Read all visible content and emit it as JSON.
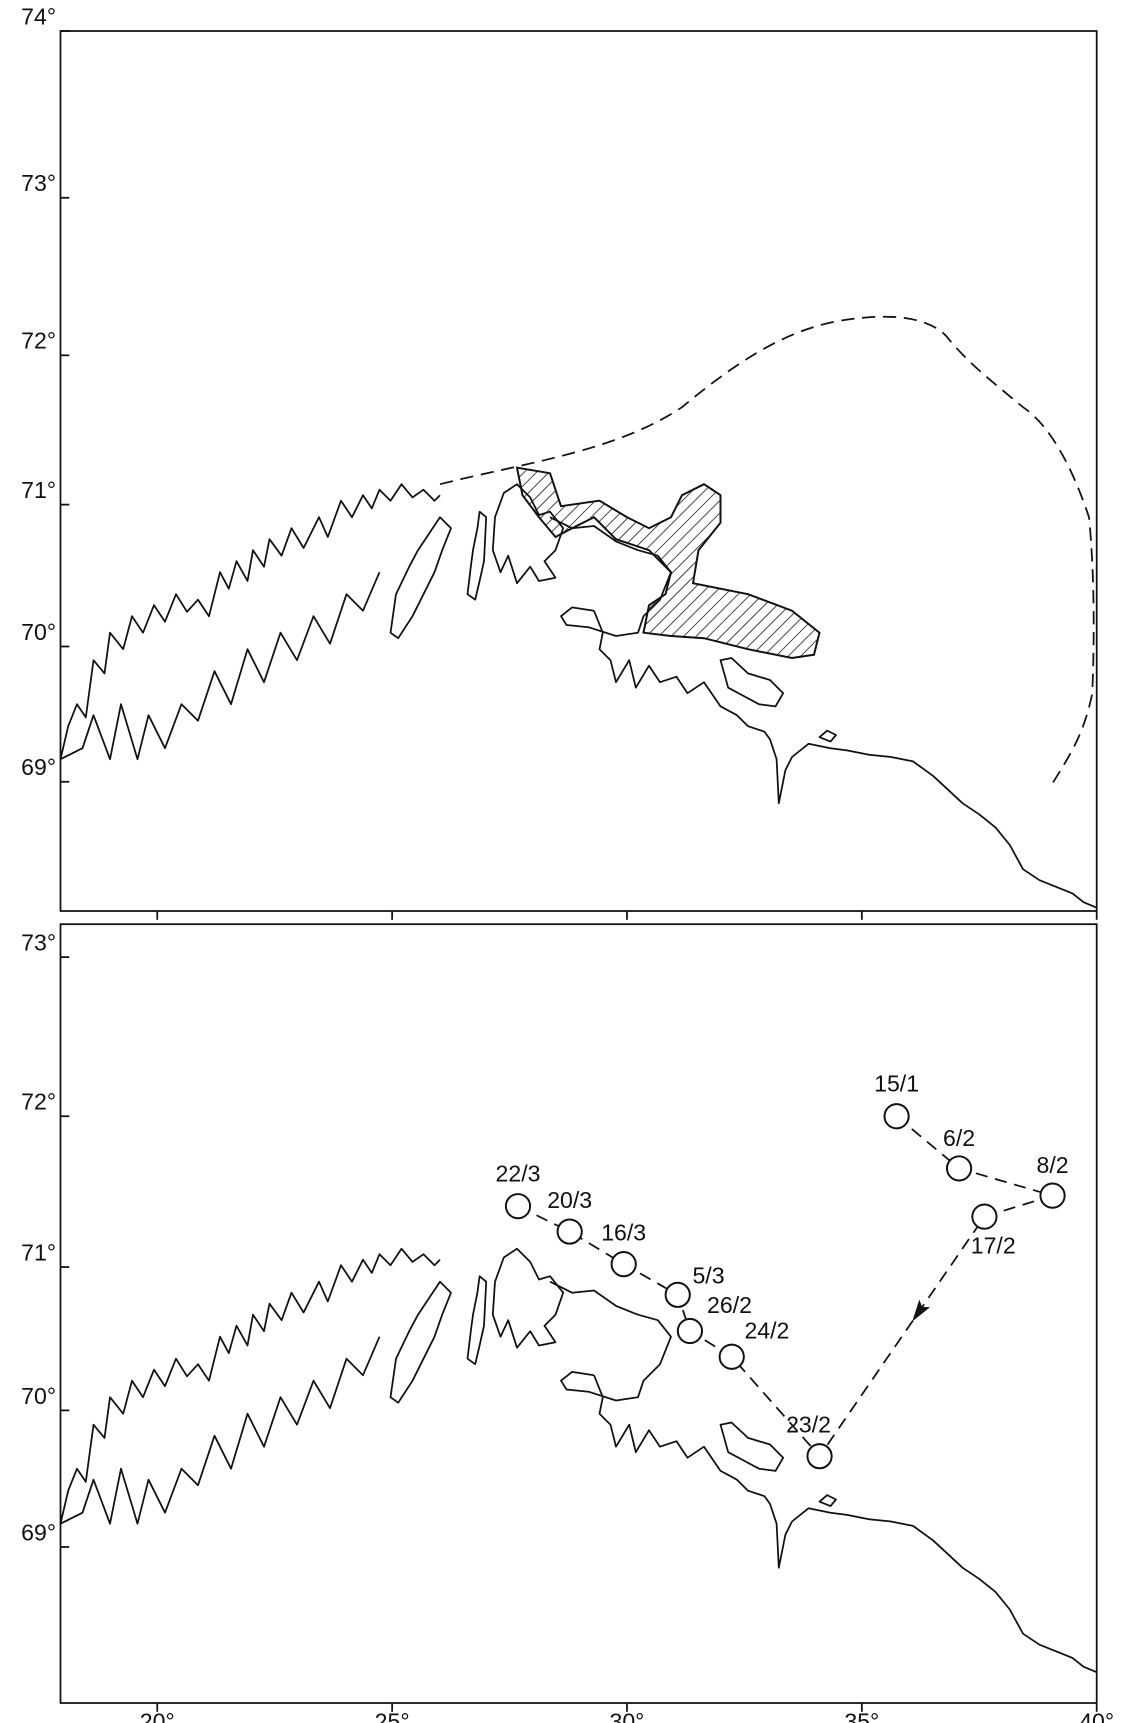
{
  "panels": [
    {
      "lon_range": [
        17.94,
        40
      ],
      "lat_range": [
        68.0,
        74
      ],
      "lat_ticks": [
        {
          "value": 74,
          "label": "74°"
        },
        {
          "value": 73,
          "label": "73°"
        },
        {
          "value": 72,
          "label": "72°"
        },
        {
          "value": 71,
          "label": "71°"
        },
        {
          "value": 70,
          "label": "70°"
        },
        {
          "value": 69,
          "label": "69°"
        }
      ]
    },
    {
      "lon_range": [
        17.94,
        40
      ],
      "lat_range": [
        67.8,
        73.2
      ],
      "lat_ticks": [
        {
          "value": 73,
          "label": "73°"
        },
        {
          "value": 72,
          "label": "72°"
        },
        {
          "value": 71,
          "label": "71°"
        },
        {
          "value": 70,
          "label": "70°"
        },
        {
          "value": 69,
          "label": "69°"
        }
      ],
      "lon_ticks": [
        {
          "value": 20,
          "label": "20°"
        },
        {
          "value": 25,
          "label": "25°"
        },
        {
          "value": 30,
          "label": "30°"
        },
        {
          "value": 35,
          "label": "35°"
        },
        {
          "value": 40,
          "label": "40°"
        }
      ],
      "stations": [
        {
          "label": "15/1",
          "lon": 35.74,
          "lat": 72.0
        },
        {
          "label": "6/2",
          "lon": 37.07,
          "lat": 71.66
        },
        {
          "label": "8/2",
          "lon": 39.06,
          "lat": 71.48
        },
        {
          "label": "17/2",
          "lon": 37.61,
          "lat": 71.34
        },
        {
          "label": "23/2",
          "lon": 34.1,
          "lat": 69.67
        },
        {
          "label": "24/2",
          "lon": 32.23,
          "lat": 70.38
        },
        {
          "label": "26/2",
          "lon": 31.34,
          "lat": 70.56
        },
        {
          "label": "5/3",
          "lon": 31.08,
          "lat": 70.81
        },
        {
          "label": "16/3",
          "lon": 29.93,
          "lat": 71.02
        },
        {
          "label": "20/3",
          "lon": 28.78,
          "lat": 71.24
        },
        {
          "label": "22/3",
          "lon": 27.68,
          "lat": 71.41
        }
      ]
    }
  ]
}
